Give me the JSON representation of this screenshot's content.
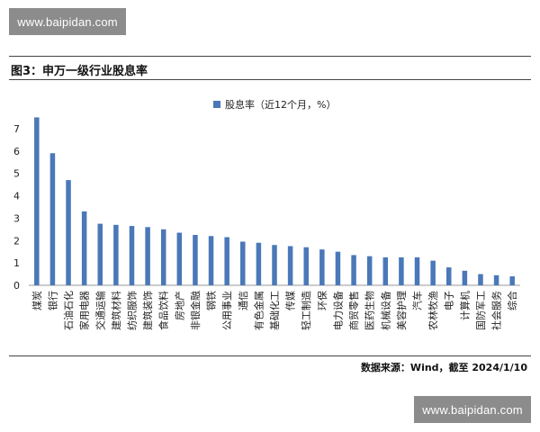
{
  "watermark_top": "www.baipidan.com",
  "watermark_bottom": "www.baipidan.com",
  "figure_title": "图3：申万一级行业股息率",
  "source_note": "数据来源：Wind，截至 2024/1/10",
  "colors": {
    "bar": "#4a78b8",
    "axis": "#999999",
    "text": "#222222"
  },
  "chart_data": {
    "type": "bar",
    "legend_position": "top-center",
    "grid": false,
    "ylim": [
      0,
      8
    ],
    "yticks": [
      0,
      1,
      2,
      3,
      4,
      5,
      6,
      7
    ],
    "categories": [
      "煤炭",
      "银行",
      "石油石化",
      "家用电器",
      "交通运输",
      "建筑材料",
      "纺织服饰",
      "建筑装饰",
      "食品饮料",
      "房地产",
      "非银金融",
      "钢铁",
      "公用事业",
      "通信",
      "有色金属",
      "基础化工",
      "传媒",
      "轻工制造",
      "环保",
      "电力设备",
      "商贸零售",
      "医药生物",
      "机械设备",
      "美容护理",
      "汽车",
      "农林牧渔",
      "电子",
      "计算机",
      "国防军工",
      "社会服务",
      "综合"
    ],
    "series": [
      {
        "name": "股息率（近12个月，%）",
        "values": [
          7.5,
          5.9,
          4.7,
          3.3,
          2.75,
          2.7,
          2.65,
          2.6,
          2.5,
          2.35,
          2.25,
          2.2,
          2.15,
          1.95,
          1.9,
          1.8,
          1.75,
          1.7,
          1.6,
          1.5,
          1.35,
          1.3,
          1.25,
          1.25,
          1.25,
          1.1,
          0.8,
          0.65,
          0.5,
          0.45,
          0.4
        ]
      }
    ]
  }
}
